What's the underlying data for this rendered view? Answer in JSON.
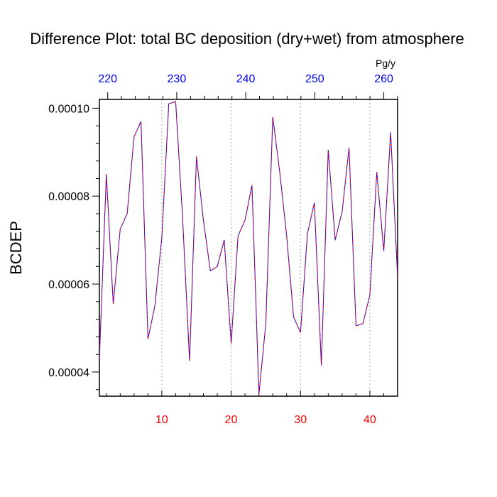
{
  "chart_data": {
    "type": "line",
    "title": "Difference Plot: total BC deposition (dry+wet) from atmosphere",
    "ylabel": "BCDEP",
    "top_axis_unit": "Pg/y",
    "xlim": [
      1,
      44
    ],
    "ylim": [
      3.45e-05,
      0.000102
    ],
    "yticks": [
      4e-05,
      6e-05,
      8e-05,
      0.0001
    ],
    "ytick_labels": [
      "0.00004",
      "0.00006",
      "0.00008",
      "0.00010"
    ],
    "xticks_bottom": [
      10,
      20,
      30,
      40
    ],
    "xtick_labels_bottom": [
      "10",
      "20",
      "30",
      "40"
    ],
    "top_axis_ticks": [
      220,
      230,
      240,
      250,
      260
    ],
    "top_axis_labels": [
      "220",
      "230",
      "240",
      "250",
      "260"
    ],
    "top_axis_range": [
      218.8,
      262.0
    ],
    "grid": "vertical dotted at bottom ticks",
    "line_colors": [
      "#0000ff",
      "#ff0000"
    ],
    "bottom_tick_color": "#ff0000",
    "top_tick_color": "#0000ff",
    "series": [
      {
        "x": [
          1,
          2,
          3,
          4,
          5,
          6,
          7,
          8,
          9,
          10,
          11,
          12,
          13,
          14,
          15,
          16,
          17,
          18,
          19,
          20,
          21,
          22,
          23,
          24,
          25,
          26,
          27,
          28,
          29,
          30,
          31,
          32,
          33,
          34,
          35,
          36,
          37,
          38,
          39,
          40,
          41,
          42,
          43,
          44
        ],
        "values": [
          4.3e-05,
          8.5e-05,
          5.55e-05,
          7.25e-05,
          7.6e-05,
          9.35e-05,
          9.7e-05,
          4.75e-05,
          5.5e-05,
          7.05e-05,
          0.000101,
          0.0001015,
          7.5e-05,
          4.25e-05,
          8.9e-05,
          7.45e-05,
          6.3e-05,
          6.4e-05,
          7e-05,
          4.65e-05,
          7.1e-05,
          7.45e-05,
          8.25e-05,
          3.5e-05,
          5.1e-05,
          9.8e-05,
          8.55e-05,
          7.1e-05,
          5.25e-05,
          4.9e-05,
          7.15e-05,
          7.85e-05,
          4.15e-05,
          9.05e-05,
          7e-05,
          7.65e-05,
          9.1e-05,
          5.05e-05,
          5.1e-05,
          5.75e-05,
          8.55e-05,
          6.75e-05,
          9.45e-05,
          6.15e-05
        ]
      }
    ]
  }
}
